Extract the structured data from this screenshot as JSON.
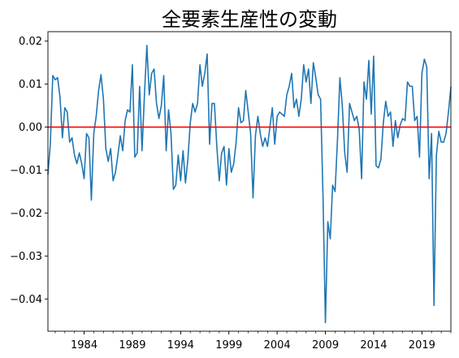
{
  "chart_data": {
    "type": "line",
    "title": "全要素生産性の変動",
    "xlabel": "",
    "ylabel": "",
    "x_start": 1980.25,
    "x_step": 0.25,
    "xlim": [
      1980.25,
      2022.0
    ],
    "ylim": [
      -0.0475,
      0.0222
    ],
    "x_ticks": [
      1984,
      1989,
      1994,
      1999,
      2004,
      2009,
      2014,
      2019
    ],
    "x_tick_labels": [
      "1984",
      "1989",
      "1994",
      "1999",
      "2004",
      "2009",
      "2014",
      "2019"
    ],
    "y_ticks": [
      0.02,
      0.01,
      0.0,
      -0.01,
      -0.02,
      -0.03,
      -0.04
    ],
    "y_tick_labels": [
      "0.02",
      "0.01",
      "0.00",
      "−0.01",
      "−0.02",
      "−0.03",
      "−0.04"
    ],
    "grid": false,
    "reference_line": {
      "y": 0.0,
      "color": "#ff0000"
    },
    "series": [
      {
        "color": "#1f77b4",
        "values": [
          -0.011,
          -0.004,
          0.012,
          0.011,
          0.0115,
          0.007,
          -0.0025,
          0.0045,
          0.0035,
          -0.0035,
          -0.0025,
          -0.0065,
          -0.0085,
          -0.006,
          -0.0085,
          -0.012,
          -0.0015,
          -0.0025,
          -0.017,
          -0.0015,
          0.0025,
          0.0085,
          0.0122,
          0.0065,
          -0.005,
          -0.008,
          -0.005,
          -0.0125,
          -0.0105,
          -0.0065,
          -0.002,
          -0.0055,
          0.0015,
          0.004,
          0.0035,
          0.0145,
          -0.007,
          -0.006,
          0.0095,
          -0.0055,
          0.0075,
          0.019,
          0.0075,
          0.0125,
          0.0135,
          0.0055,
          0.002,
          0.005,
          0.012,
          -0.0055,
          0.004,
          -0.0015,
          -0.0145,
          -0.0135,
          -0.0065,
          -0.0125,
          -0.0055,
          -0.013,
          -0.0075,
          0.001,
          0.0055,
          0.0035,
          0.0055,
          0.0145,
          0.0095,
          0.0125,
          0.017,
          -0.004,
          0.0055,
          0.0055,
          -0.0045,
          -0.0125,
          -0.006,
          -0.0045,
          -0.0135,
          -0.005,
          -0.0105,
          -0.0085,
          -0.0035,
          0.0045,
          0.001,
          0.0015,
          0.0085,
          0.0035,
          -0.0015,
          -0.0165,
          -0.002,
          0.0025,
          -0.0015,
          -0.0045,
          -0.0025,
          -0.0045,
          0.0,
          0.0045,
          -0.004,
          0.0025,
          0.0035,
          0.003,
          0.0025,
          0.0075,
          0.0095,
          0.0125,
          0.0045,
          0.0065,
          0.0025,
          0.0065,
          0.0145,
          0.0105,
          0.0135,
          0.0055,
          0.015,
          0.0115,
          0.0075,
          0.0065,
          -0.016,
          -0.0455,
          -0.022,
          -0.026,
          -0.0135,
          -0.015,
          -0.003,
          0.0115,
          0.005,
          -0.006,
          -0.0105,
          0.0055,
          0.0035,
          0.0015,
          0.0025,
          -0.0005,
          -0.012,
          0.0105,
          0.0065,
          0.0155,
          0.003,
          0.0165,
          -0.009,
          -0.0095,
          -0.0075,
          0.001,
          0.006,
          0.0025,
          0.0035,
          -0.0045,
          0.0015,
          -0.0025,
          0.0005,
          0.002,
          0.0015,
          0.0105,
          0.0095,
          0.0095,
          0.0015,
          0.0025,
          -0.007,
          0.0125,
          0.0158,
          0.014,
          -0.012,
          -0.0015,
          -0.0415,
          -0.0065,
          -0.001,
          -0.0035,
          -0.0035,
          -0.0015,
          0.0035,
          0.0093
        ]
      }
    ]
  }
}
